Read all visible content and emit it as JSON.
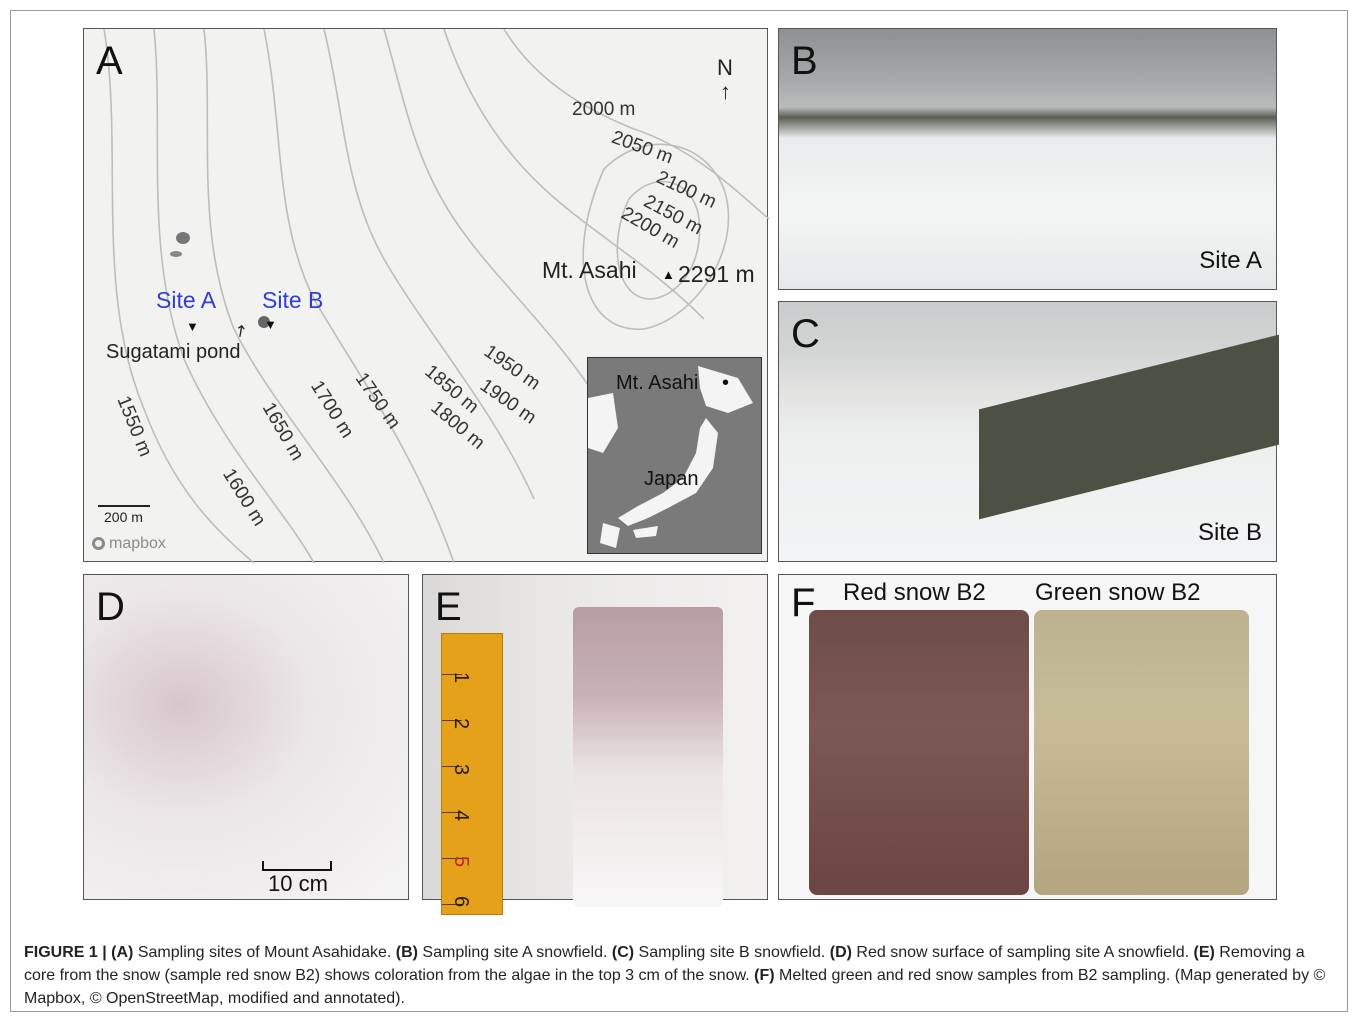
{
  "panels": {
    "a": {
      "label": "A",
      "north": "N",
      "contours": [
        "2000 m",
        "2050 m",
        "2100 m",
        "2150 m",
        "2200 m",
        "1950 m",
        "1900 m",
        "1850 m",
        "1800 m",
        "1750 m",
        "1700 m",
        "1650 m",
        "1600 m",
        "1550 m"
      ],
      "summit": "Mt. Asahi",
      "summit_elev": "2291 m",
      "site_a": "Site A",
      "site_b": "Site B",
      "pond": "Sugatami pond",
      "scale": "200 m",
      "attribution": "mapbox",
      "inset_summit": "Mt. Asahi",
      "inset_country": "Japan"
    },
    "b": {
      "label": "B",
      "caption": "Site A"
    },
    "c": {
      "label": "C",
      "caption": "Site B"
    },
    "d": {
      "label": "D",
      "scale": "10 cm"
    },
    "e": {
      "label": "E",
      "ruler_numbers": [
        "1",
        "2",
        "3",
        "4",
        "5",
        "6"
      ]
    },
    "f": {
      "label": "F",
      "left_label": "Red snow B2",
      "right_label": "Green snow B2"
    }
  },
  "caption": {
    "fig_label": "FIGURE 1 |",
    "a_tag": "(A)",
    "a_text": " Sampling sites of Mount Asahidake. ",
    "b_tag": "(B)",
    "b_text": " Sampling site A snowfield. ",
    "c_tag": "(C)",
    "c_text": " Sampling site B snowfield. ",
    "d_tag": "(D)",
    "d_text": " Red snow surface of sampling site A snowfield. ",
    "e_tag": "(E)",
    "e_text": " Removing a core from the snow (sample red snow B2) shows coloration from the algae in the top 3 cm of the snow. ",
    "f_tag": "(F)",
    "f_text": " Melted green and red snow samples from B2 sampling. (Map generated by © Mapbox, © OpenStreetMap, modified and annotated)."
  },
  "colors": {
    "site_label": "#2f3fd0",
    "red_snow": "#6d4c49",
    "green_snow": "#bdb290",
    "ruler": "#e5a11a"
  }
}
